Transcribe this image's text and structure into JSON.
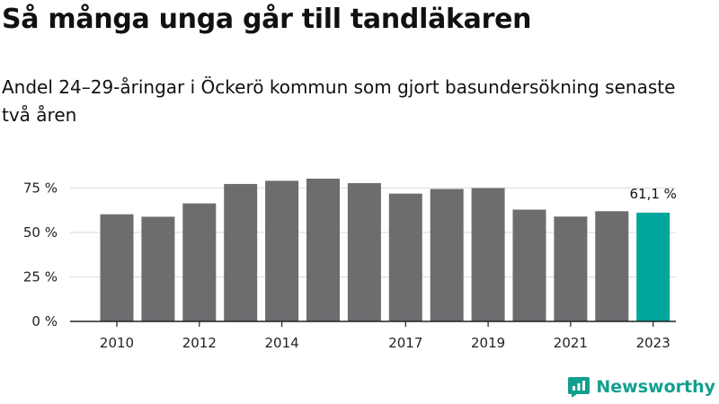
{
  "title": "Så många unga går till tandläkaren",
  "subtitle": "Andel 24–29-åringar i Öckerö kommun som gjort basundersökning senaste två åren",
  "brand": {
    "name": "Newsworthy",
    "icon": "newsworthy-logo-icon",
    "color": "#11a08f"
  },
  "chart_data": {
    "type": "bar",
    "categories": [
      "2010",
      "2011",
      "2012",
      "2013",
      "2014",
      "2015",
      "2016",
      "2017",
      "2018",
      "2019",
      "2020",
      "2021",
      "2022",
      "2023"
    ],
    "values": [
      60.2,
      58.8,
      66.3,
      77.2,
      79.0,
      80.2,
      77.7,
      71.8,
      74.4,
      74.9,
      62.8,
      58.9,
      61.9,
      61.1
    ],
    "x_tick_labels": [
      "2010",
      "2012",
      "2014",
      "2017",
      "2019",
      "2021",
      "2023"
    ],
    "y_ticks": [
      0,
      25,
      50,
      75
    ],
    "y_tick_labels": [
      "0 %",
      "25 %",
      "50 %",
      "75 %"
    ],
    "ylim": [
      0,
      80.2
    ],
    "grid": true,
    "bar_color": "#6d6d70",
    "highlight_color": "#00a69c",
    "highlight_index": 13,
    "value_label": "61,1 %",
    "xlabel": "",
    "ylabel": ""
  }
}
